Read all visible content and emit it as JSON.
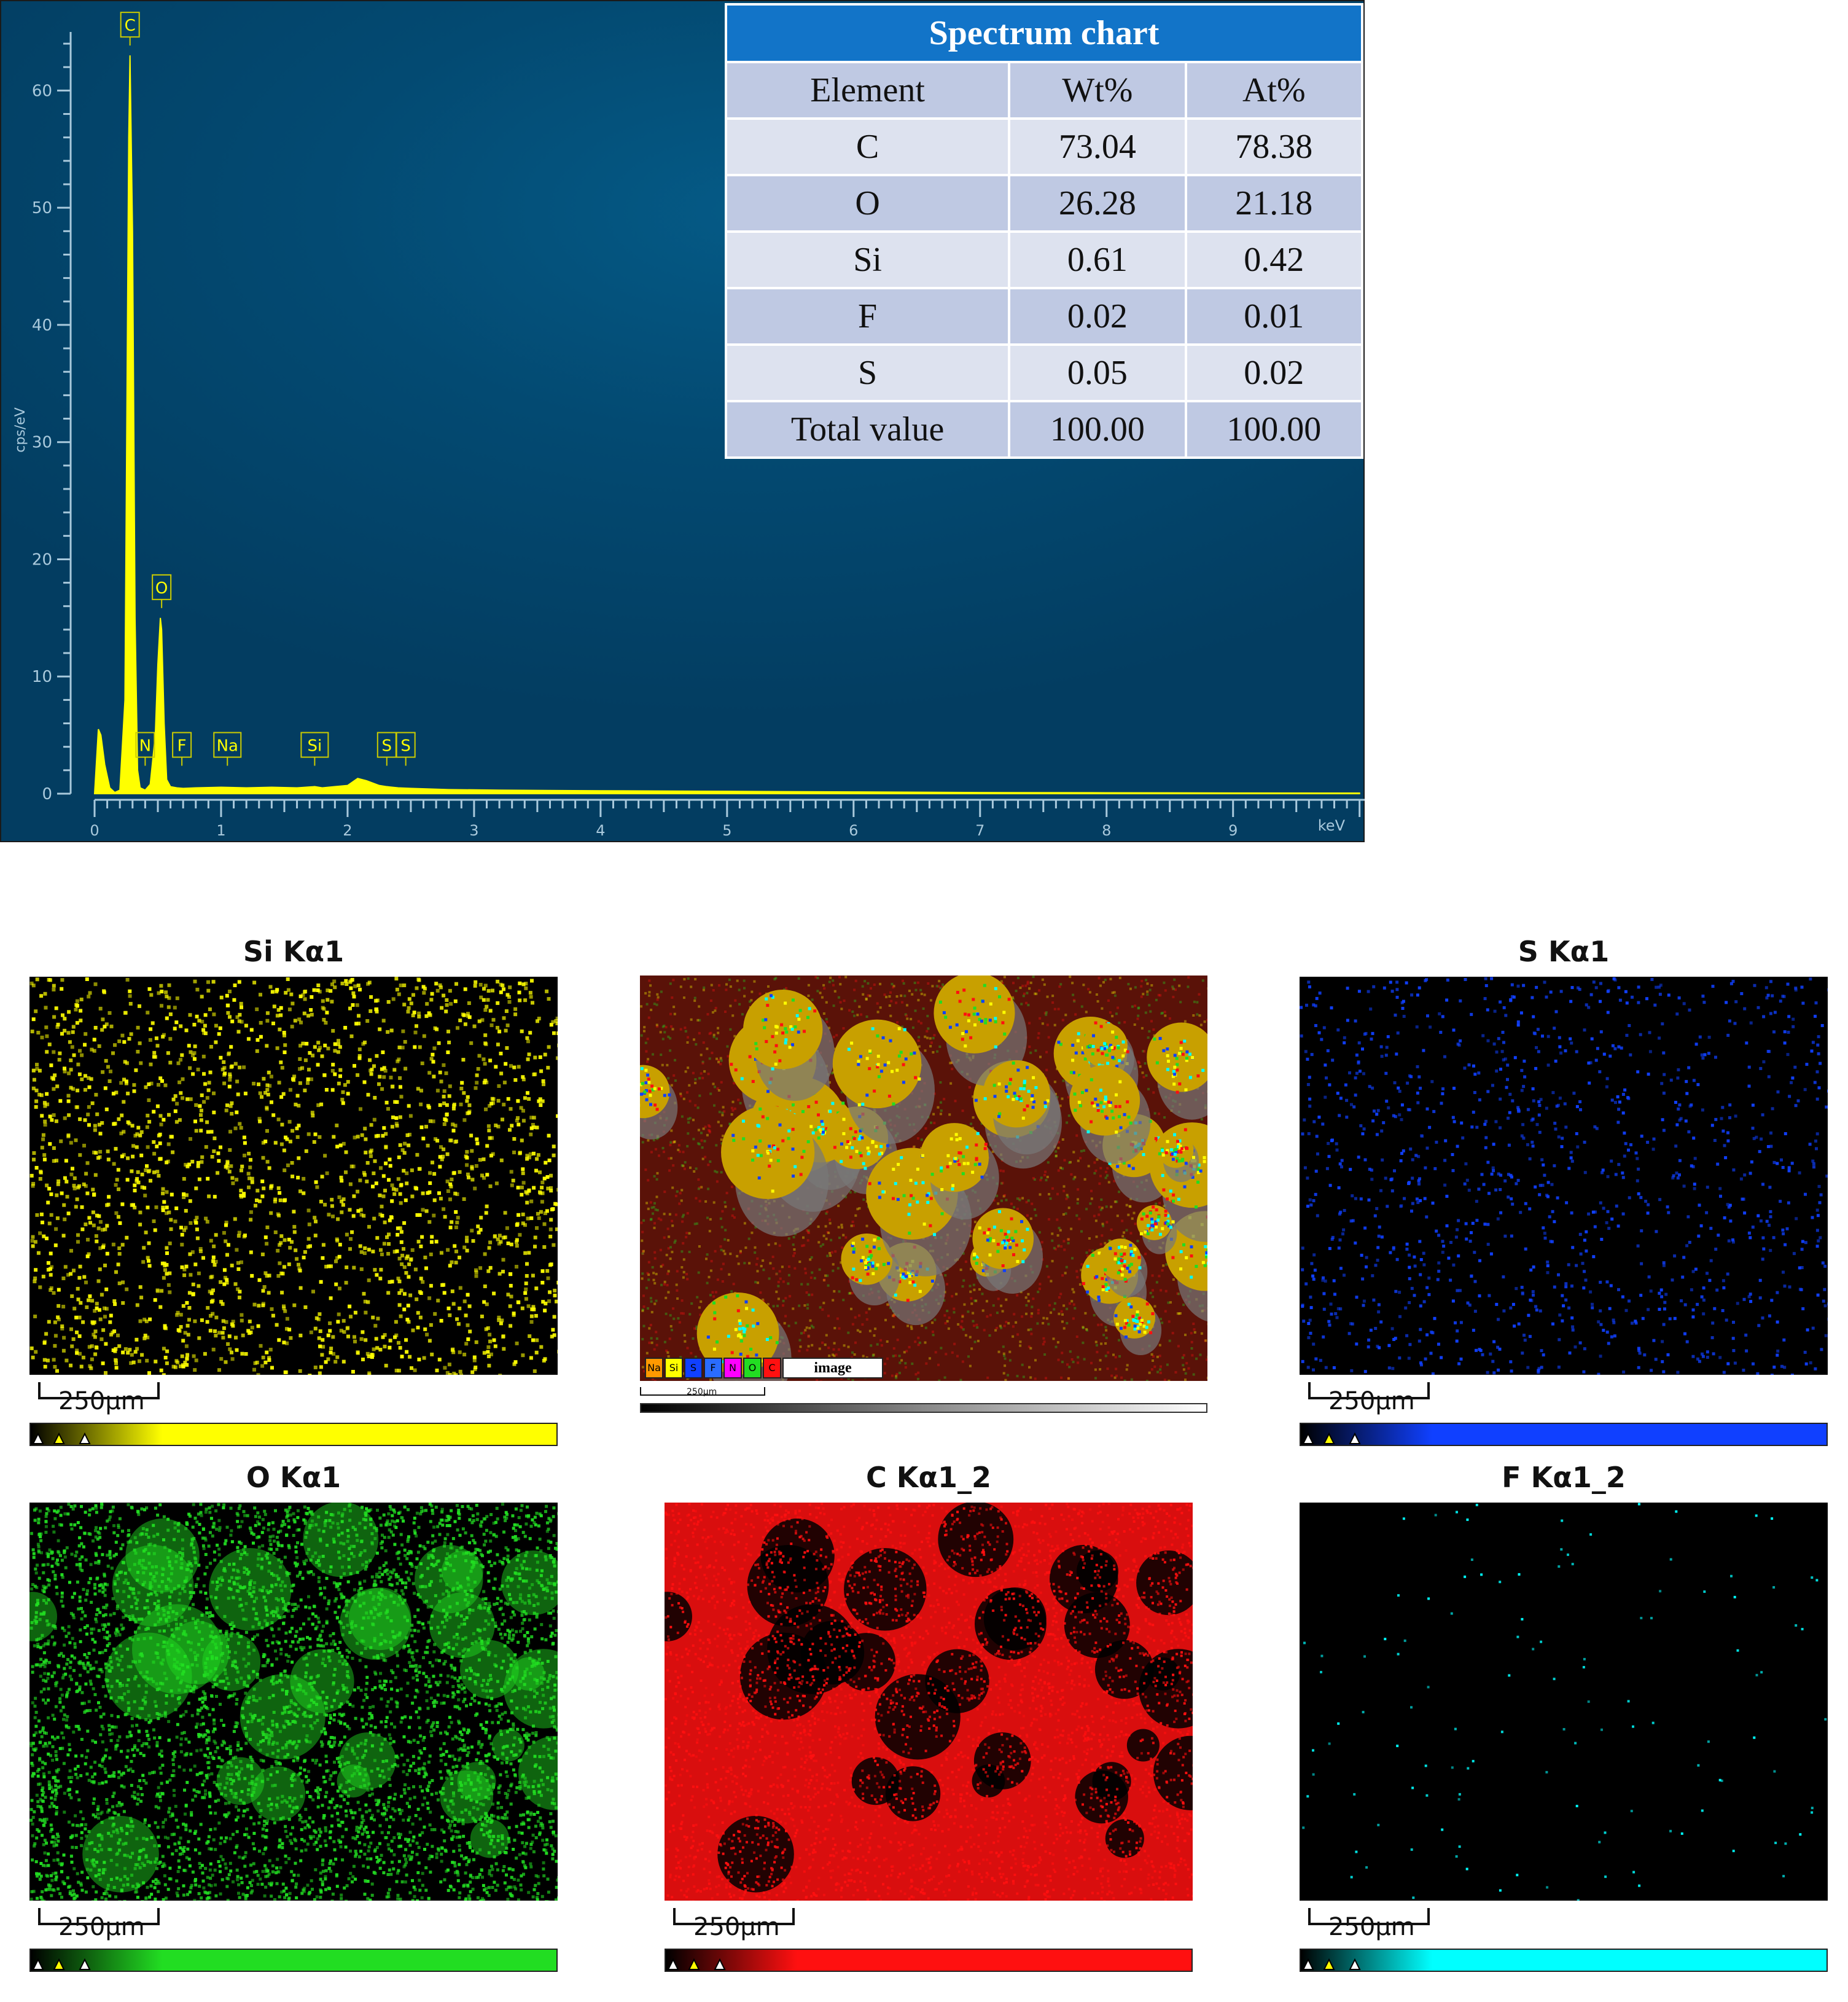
{
  "chart_data": {
    "type": "line",
    "title": "",
    "xlabel": "keV",
    "ylabel": "cps/eV",
    "xlim": [
      0,
      10.05
    ],
    "ylim": [
      0,
      65
    ],
    "x_ticks": [
      "0",
      "1",
      "2",
      "3",
      "4",
      "5",
      "6",
      "7",
      "8",
      "9"
    ],
    "y_ticks": [
      "0",
      "10",
      "20",
      "30",
      "40",
      "50",
      "60"
    ],
    "series": [
      {
        "x": [
          0.0,
          0.03,
          0.05,
          0.08,
          0.12,
          0.16,
          0.2,
          0.24,
          0.26,
          0.27,
          0.28,
          0.3,
          0.32,
          0.34,
          0.36,
          0.4,
          0.44,
          0.48,
          0.5,
          0.52,
          0.53,
          0.55,
          0.57,
          0.6,
          0.65,
          0.7,
          0.8,
          1.0,
          1.2,
          1.4,
          1.6,
          1.74,
          1.8,
          1.9,
          2.0,
          2.08,
          2.15,
          2.25,
          2.31,
          2.4,
          2.5,
          2.8,
          3.2,
          4.0,
          5.0,
          6.0,
          7.0,
          8.0,
          9.0,
          10.0
        ],
        "values": [
          0,
          5.5,
          5.0,
          2.5,
          0.5,
          0.1,
          0.3,
          8,
          40,
          56,
          63,
          48,
          15,
          2,
          0.5,
          0.3,
          0.8,
          5,
          11,
          15,
          14,
          6,
          1.2,
          0.6,
          0.5,
          0.45,
          0.5,
          0.55,
          0.5,
          0.55,
          0.5,
          0.6,
          0.5,
          0.6,
          0.7,
          1.3,
          1.1,
          0.7,
          0.6,
          0.5,
          0.45,
          0.35,
          0.3,
          0.25,
          0.2,
          0.15,
          0.1,
          0.08,
          0.06,
          0.05
        ]
      }
    ],
    "peak_labels": [
      {
        "label": "C",
        "x": 0.28
      },
      {
        "label": "O",
        "x": 0.53
      },
      {
        "label": "N",
        "x": 0.4
      },
      {
        "label": "F",
        "x": 0.69
      },
      {
        "label": "Na",
        "x": 1.05
      },
      {
        "label": "Si",
        "x": 1.74
      },
      {
        "label": "S",
        "x": 2.31
      },
      {
        "label": "S",
        "x": 2.46
      }
    ]
  },
  "table": {
    "title": "Spectrum chart",
    "headers": [
      "Element",
      "Wt%",
      "At%"
    ],
    "rows": [
      [
        "C",
        "73.04",
        "78.38"
      ],
      [
        "O",
        "26.28",
        "21.18"
      ],
      [
        "Si",
        "0.61",
        "0.42"
      ],
      [
        "F",
        "0.02",
        "0.01"
      ],
      [
        "S",
        "0.05",
        "0.02"
      ],
      [
        "Total value",
        "100.00",
        "100.00"
      ]
    ]
  },
  "maps": {
    "si_title": "Si Kα1",
    "s_title": "S Kα1",
    "o_title": "O Kα1",
    "c_title": "C Kα1_2",
    "f_title": "F Kα1_2",
    "scale": "250μm",
    "composite_legend": [
      "Na",
      "Si",
      "S",
      "F",
      "N",
      "O",
      "C"
    ],
    "composite_label": "image",
    "composite_scale": "250μm",
    "colors": {
      "si": "#ffff00",
      "s": "#1040ff",
      "o": "#22dd22",
      "c": "#ff1010",
      "f": "#00ffff"
    }
  }
}
